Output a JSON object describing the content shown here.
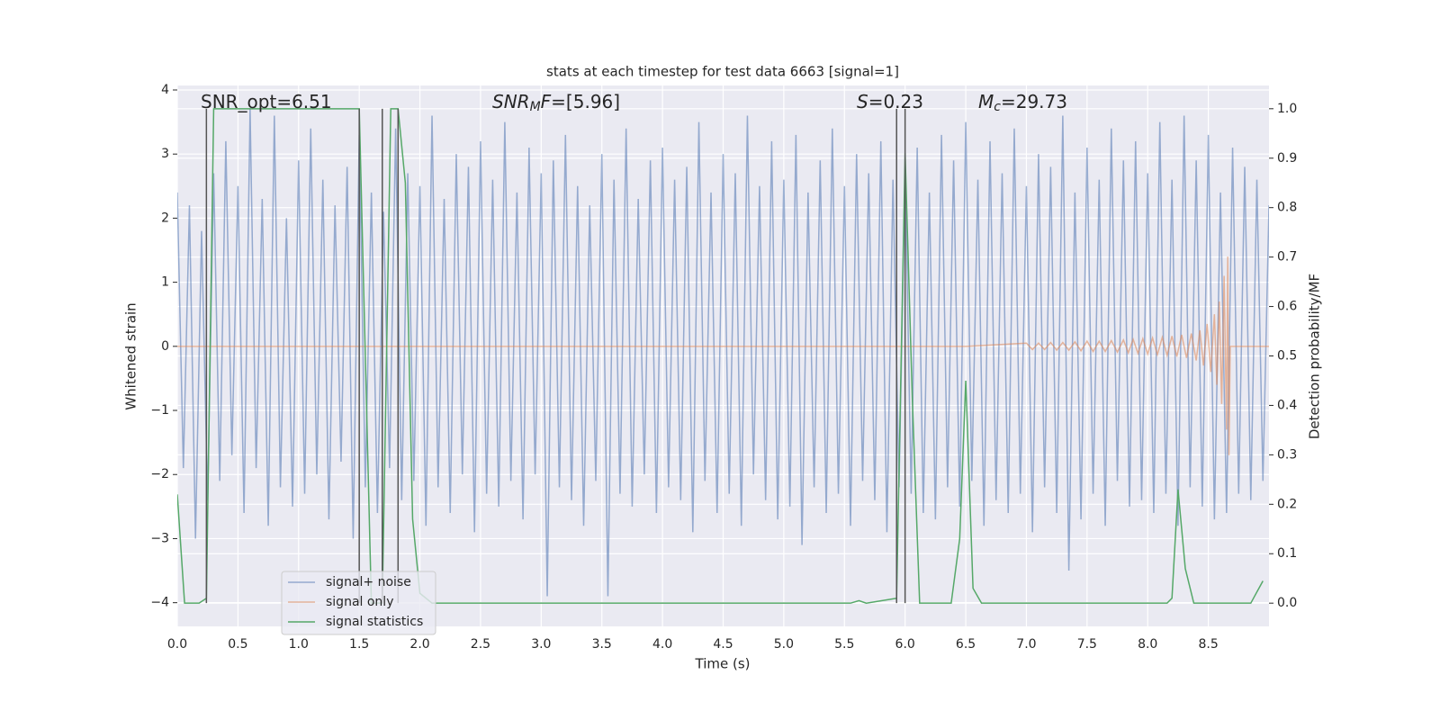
{
  "chart_data": {
    "type": "line",
    "title": "stats at each timestep for test data 6663 [signal=1]",
    "xlabel": "Time (s)",
    "ylabel": "Whitened strain",
    "y2label": "Detection probability/MF",
    "xlim": [
      0,
      9.0
    ],
    "ylim": [
      -4.37,
      4.07
    ],
    "y2lim": [
      -0.047,
      1.047
    ],
    "xticks": [
      {
        "value": 0,
        "label": "0.0"
      },
      0.5,
      {
        "value": 1,
        "label": "1.0"
      },
      1.5,
      {
        "value": 2,
        "label": "2.0"
      },
      2.5,
      {
        "value": 3,
        "label": "3.0"
      },
      3.5,
      {
        "value": 4,
        "label": "4.0"
      },
      4.5,
      {
        "value": 5,
        "label": "5.0"
      },
      5.5,
      {
        "value": 6,
        "label": "6.0"
      },
      6.5,
      {
        "value": 7,
        "label": "7.0"
      },
      7.5,
      {
        "value": 8,
        "label": "8.0"
      },
      8.5
    ],
    "yticks": [
      {
        "value": -4,
        "label": "−4"
      },
      {
        "value": -3,
        "label": "−3"
      },
      {
        "value": -2,
        "label": "−2"
      },
      {
        "value": -1,
        "label": "−1"
      },
      0,
      1,
      2,
      3,
      4
    ],
    "y2ticks": [
      {
        "value": 0,
        "label": "0.0"
      },
      0.1,
      0.2,
      0.3,
      0.4,
      0.5,
      0.6,
      0.7,
      0.8,
      0.9,
      {
        "value": 1,
        "label": "1.0"
      }
    ],
    "grid": true,
    "legend_loc": "lower left",
    "vlines": [
      0.24,
      1.5,
      1.69,
      1.82,
      5.93,
      6.0
    ],
    "vline_color": "#555555",
    "annotations": [
      {
        "parts": [
          "SNR_opt=6.51"
        ]
      },
      {
        "parts": [
          "SNR",
          "M",
          "F",
          "=[5.96]"
        ]
      },
      {
        "parts": [
          "S",
          "=0.23"
        ]
      },
      {
        "parts": [
          "M",
          "c",
          "=29.73"
        ]
      }
    ],
    "series": [
      {
        "name": "signal+ noise",
        "color": "#4c72b0",
        "x": [
          0,
          0.05,
          0.1,
          0.15,
          0.2,
          0.25,
          0.3,
          0.35,
          0.4,
          0.45,
          0.5,
          0.55,
          0.6,
          0.65,
          0.7,
          0.75,
          0.8,
          0.85,
          0.9,
          0.95,
          1.0,
          1.05,
          1.1,
          1.15,
          1.2,
          1.25,
          1.3,
          1.35,
          1.4,
          1.45,
          1.5,
          1.55,
          1.6,
          1.65,
          1.7,
          1.75,
          1.8,
          1.85,
          1.9,
          1.95,
          2.0,
          2.05,
          2.1,
          2.15,
          2.2,
          2.25,
          2.3,
          2.35,
          2.4,
          2.45,
          2.5,
          2.55,
          2.6,
          2.65,
          2.7,
          2.75,
          2.8,
          2.85,
          2.9,
          2.95,
          3.0,
          3.05,
          3.1,
          3.15,
          3.2,
          3.25,
          3.3,
          3.35,
          3.4,
          3.45,
          3.5,
          3.55,
          3.6,
          3.65,
          3.7,
          3.75,
          3.8,
          3.85,
          3.9,
          3.95,
          4.0,
          4.05,
          4.1,
          4.15,
          4.2,
          4.25,
          4.3,
          4.35,
          4.4,
          4.45,
          4.5,
          4.55,
          4.6,
          4.65,
          4.7,
          4.75,
          4.8,
          4.85,
          4.9,
          4.95,
          5.0,
          5.05,
          5.1,
          5.15,
          5.2,
          5.25,
          5.3,
          5.35,
          5.4,
          5.45,
          5.5,
          5.55,
          5.6,
          5.65,
          5.7,
          5.75,
          5.8,
          5.85,
          5.9,
          5.95,
          6.0,
          6.05,
          6.1,
          6.15,
          6.2,
          6.25,
          6.3,
          6.35,
          6.4,
          6.45,
          6.5,
          6.55,
          6.6,
          6.65,
          6.7,
          6.75,
          6.8,
          6.85,
          6.9,
          6.95,
          7.0,
          7.05,
          7.1,
          7.15,
          7.2,
          7.25,
          7.3,
          7.35,
          7.4,
          7.45,
          7.5,
          7.55,
          7.6,
          7.65,
          7.7,
          7.75,
          7.8,
          7.85,
          7.9,
          7.95,
          8.0,
          8.05,
          8.1,
          8.15,
          8.2,
          8.25,
          8.3,
          8.35,
          8.4,
          8.45,
          8.5,
          8.55,
          8.6,
          8.65,
          8.7,
          8.75,
          8.8,
          8.85,
          8.9,
          8.95,
          9.0
        ],
        "values": [
          2.4,
          -1.9,
          2.2,
          -3.0,
          1.8,
          -2.4,
          2.7,
          -2.1,
          3.2,
          -1.7,
          2.5,
          -2.6,
          3.7,
          -1.9,
          2.3,
          -2.8,
          3.6,
          -2.2,
          2.0,
          -2.5,
          2.9,
          -2.3,
          3.4,
          -2.0,
          2.6,
          -2.7,
          2.2,
          -1.8,
          2.8,
          -3.0,
          3.3,
          -2.2,
          2.4,
          -2.6,
          2.1,
          -1.9,
          3.4,
          -2.4,
          2.7,
          -2.1,
          2.5,
          -2.8,
          3.6,
          -2.2,
          2.3,
          -2.6,
          3.0,
          -2.0,
          2.8,
          -2.9,
          3.2,
          -2.3,
          2.6,
          -2.5,
          3.5,
          -2.1,
          2.4,
          -2.7,
          3.1,
          -2.0,
          2.7,
          -3.9,
          2.9,
          -2.2,
          3.3,
          -2.4,
          2.5,
          -2.8,
          2.2,
          -2.1,
          3.0,
          -3.9,
          2.6,
          -2.3,
          3.4,
          -2.5,
          2.3,
          -2.0,
          2.9,
          -2.6,
          3.1,
          -2.2,
          2.6,
          -2.4,
          2.8,
          -2.9,
          3.5,
          -2.1,
          2.4,
          -2.6,
          3.0,
          -2.3,
          2.7,
          -2.8,
          3.6,
          -2.0,
          2.5,
          -2.4,
          3.2,
          -2.7,
          2.6,
          -2.5,
          3.3,
          -3.1,
          2.4,
          -2.2,
          2.9,
          -2.6,
          3.4,
          -2.3,
          2.5,
          -2.8,
          3.0,
          -2.1,
          2.7,
          -2.4,
          3.2,
          -2.9,
          2.6,
          -2.2,
          2.8,
          -2.3,
          3.1,
          -2.6,
          2.4,
          -2.7,
          3.3,
          -2.2,
          2.9,
          -2.5,
          3.5,
          -2.1,
          2.6,
          -2.8,
          3.2,
          -2.4,
          2.7,
          -2.6,
          3.4,
          -2.3,
          2.5,
          -2.9,
          3.0,
          -2.2,
          2.8,
          -2.6,
          3.6,
          -3.5,
          2.4,
          -2.7,
          3.1,
          -2.3,
          2.6,
          -2.8,
          3.4,
          -2.1,
          2.9,
          -2.5,
          3.2,
          -2.4,
          2.7,
          -2.6,
          3.5,
          -2.3,
          2.6,
          -2.8,
          3.6,
          -2.2,
          2.9,
          -2.5,
          3.3,
          -2.7,
          2.4,
          -2.6,
          3.1,
          -2.3,
          2.8,
          -2.4,
          2.6,
          -2.1,
          2.2
        ]
      },
      {
        "name": "signal only",
        "color": "#dd8452",
        "x": [
          0,
          6.5,
          7.0,
          7.05,
          7.1,
          7.15,
          7.2,
          7.25,
          7.3,
          7.35,
          7.4,
          7.45,
          7.5,
          7.55,
          7.6,
          7.65,
          7.7,
          7.75,
          7.8,
          7.84,
          7.88,
          7.92,
          7.96,
          8.0,
          8.04,
          8.08,
          8.12,
          8.16,
          8.2,
          8.24,
          8.28,
          8.32,
          8.36,
          8.4,
          8.43,
          8.46,
          8.49,
          8.52,
          8.55,
          8.57,
          8.59,
          8.61,
          8.63,
          8.65,
          8.66,
          8.67,
          8.68,
          9.0
        ],
        "values": [
          0,
          0,
          0.05,
          -0.05,
          0.05,
          -0.05,
          0.06,
          -0.06,
          0.06,
          -0.06,
          0.07,
          -0.07,
          0.08,
          -0.08,
          0.08,
          -0.08,
          0.09,
          -0.09,
          0.1,
          -0.1,
          0.11,
          -0.11,
          0.12,
          -0.12,
          0.13,
          -0.13,
          0.14,
          -0.14,
          0.16,
          -0.16,
          0.18,
          -0.18,
          0.2,
          -0.22,
          0.25,
          -0.3,
          0.35,
          -0.4,
          0.5,
          -0.6,
          0.7,
          -0.9,
          1.1,
          -1.3,
          1.4,
          -1.7,
          0,
          0
        ]
      },
      {
        "name": "signal statistics",
        "color": "#55a868",
        "axis": "y2",
        "x": [
          0,
          0.06,
          0.18,
          0.24,
          0.3,
          1.5,
          1.6,
          1.69,
          1.76,
          1.82,
          1.88,
          1.94,
          2.0,
          2.1,
          5.55,
          5.62,
          5.68,
          5.93,
          6.0,
          6.06,
          6.12,
          6.38,
          6.45,
          6.5,
          6.56,
          6.63,
          8.16,
          8.2,
          8.25,
          8.31,
          8.38,
          8.85,
          8.95
        ],
        "values": [
          0.22,
          0,
          0,
          0.01,
          1.0,
          1.0,
          0,
          0,
          1.0,
          1.0,
          0.85,
          0.17,
          0.02,
          0,
          0,
          0.005,
          0,
          0.01,
          0.91,
          0.41,
          0,
          0,
          0.13,
          0.45,
          0.03,
          0,
          0,
          0.01,
          0.23,
          0.07,
          0,
          0,
          0.045
        ]
      }
    ]
  }
}
